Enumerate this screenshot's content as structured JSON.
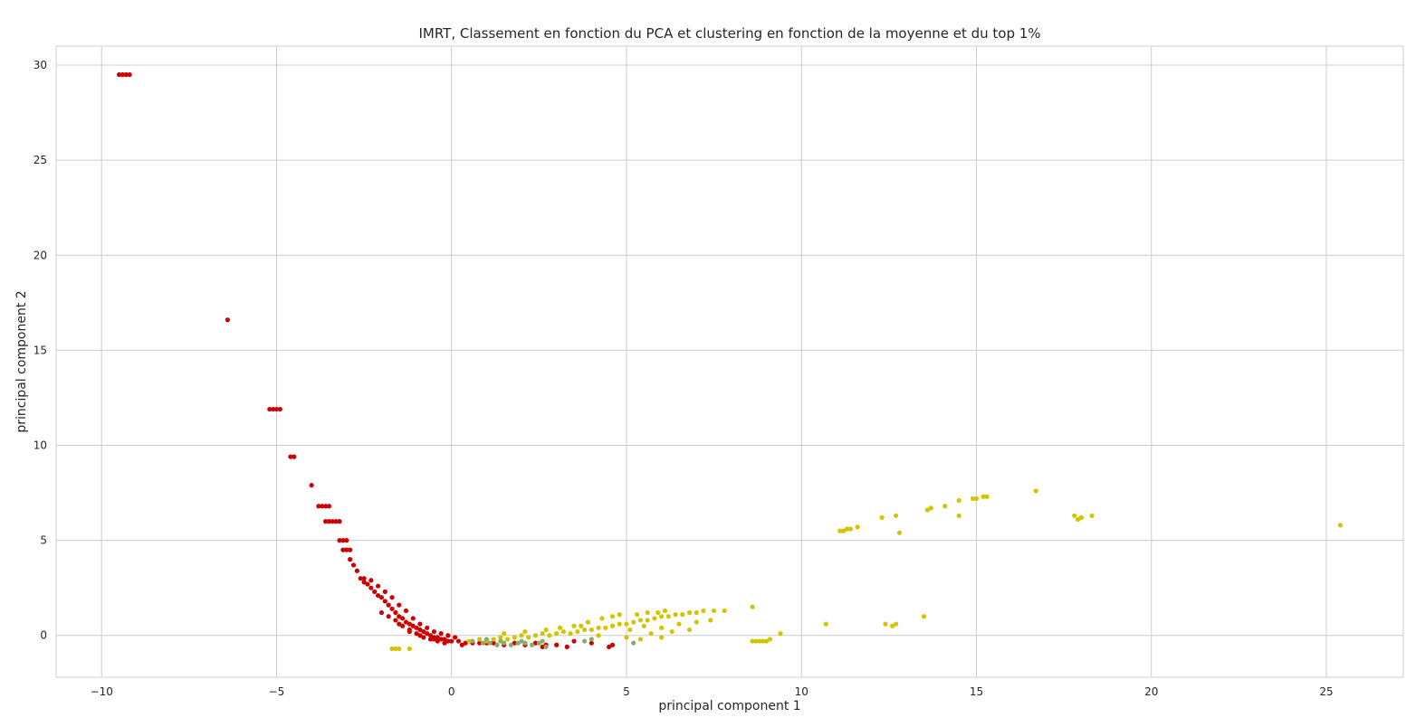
{
  "chart_data": {
    "type": "scatter",
    "title": "IMRT, Classement en fonction du PCA et clustering en fonction de la moyenne et du top 1%",
    "xlabel": "principal component 1",
    "ylabel": "principal component 2",
    "xlim": [
      -11.3,
      27.2
    ],
    "ylim": [
      -2.2,
      31.0
    ],
    "xticks": [
      -10,
      -5,
      0,
      5,
      10,
      15,
      20,
      25
    ],
    "yticks": [
      0,
      5,
      10,
      15,
      20,
      25,
      30
    ],
    "xtick_labels": [
      "−10",
      "−5",
      "0",
      "5",
      "10",
      "15",
      "20",
      "25"
    ],
    "ytick_labels": [
      "0",
      "5",
      "10",
      "15",
      "20",
      "25",
      "30"
    ],
    "grid": true,
    "series": [
      {
        "color": "#cc0000",
        "points": [
          [
            -9.5,
            29.5
          ],
          [
            -9.4,
            29.5
          ],
          [
            -9.3,
            29.5
          ],
          [
            -9.2,
            29.5
          ],
          [
            -6.4,
            16.6
          ],
          [
            -5.2,
            11.9
          ],
          [
            -5.1,
            11.9
          ],
          [
            -5.0,
            11.9
          ],
          [
            -4.9,
            11.9
          ],
          [
            -4.6,
            9.4
          ],
          [
            -4.5,
            9.4
          ],
          [
            -4.0,
            7.9
          ],
          [
            -3.8,
            6.8
          ],
          [
            -3.7,
            6.8
          ],
          [
            -3.6,
            6.8
          ],
          [
            -3.5,
            6.8
          ],
          [
            -3.6,
            6.0
          ],
          [
            -3.5,
            6.0
          ],
          [
            -3.4,
            6.0
          ],
          [
            -3.3,
            6.0
          ],
          [
            -3.2,
            6.0
          ],
          [
            -3.2,
            5.0
          ],
          [
            -3.1,
            5.0
          ],
          [
            -3.0,
            5.0
          ],
          [
            -3.1,
            4.5
          ],
          [
            -3.0,
            4.5
          ],
          [
            -2.9,
            4.5
          ],
          [
            -2.9,
            4.0
          ],
          [
            -2.8,
            3.7
          ],
          [
            -2.7,
            3.4
          ],
          [
            -2.6,
            3.0
          ],
          [
            -2.5,
            2.8
          ],
          [
            -2.4,
            2.7
          ],
          [
            -2.3,
            2.5
          ],
          [
            -2.2,
            2.3
          ],
          [
            -2.1,
            2.1
          ],
          [
            -2.0,
            2.0
          ],
          [
            -1.9,
            1.8
          ],
          [
            -1.8,
            1.6
          ],
          [
            -1.7,
            1.4
          ],
          [
            -1.6,
            1.2
          ],
          [
            -1.5,
            1.0
          ],
          [
            -1.4,
            0.9
          ],
          [
            -1.3,
            0.7
          ],
          [
            -1.2,
            0.6
          ],
          [
            -1.1,
            0.5
          ],
          [
            -1.0,
            0.4
          ],
          [
            -0.9,
            0.3
          ],
          [
            -0.8,
            0.2
          ],
          [
            -0.7,
            0.1
          ],
          [
            -0.6,
            0.0
          ],
          [
            -0.5,
            -0.1
          ],
          [
            -0.4,
            -0.1
          ],
          [
            -0.3,
            -0.2
          ],
          [
            -0.2,
            -0.2
          ],
          [
            -0.1,
            -0.3
          ],
          [
            0.0,
            -0.3
          ],
          [
            0.2,
            -0.3
          ],
          [
            0.4,
            -0.4
          ],
          [
            0.6,
            -0.4
          ],
          [
            0.8,
            -0.4
          ],
          [
            1.0,
            -0.4
          ],
          [
            1.2,
            -0.4
          ],
          [
            1.5,
            -0.5
          ],
          [
            1.8,
            -0.4
          ],
          [
            2.1,
            -0.5
          ],
          [
            2.4,
            -0.4
          ],
          [
            2.7,
            -0.5
          ],
          [
            3.0,
            -0.5
          ],
          [
            3.3,
            -0.6
          ],
          [
            -2.5,
            3.0
          ],
          [
            -2.3,
            2.9
          ],
          [
            -2.1,
            2.6
          ],
          [
            -1.9,
            2.3
          ],
          [
            -1.7,
            2.0
          ],
          [
            -1.5,
            1.6
          ],
          [
            -1.3,
            1.3
          ],
          [
            -1.1,
            0.9
          ],
          [
            -0.9,
            0.6
          ],
          [
            -0.7,
            0.4
          ],
          [
            -0.5,
            0.2
          ],
          [
            -0.3,
            0.1
          ],
          [
            -0.1,
            0.0
          ],
          [
            0.1,
            -0.1
          ],
          [
            -2.0,
            1.2
          ],
          [
            -1.8,
            1.0
          ],
          [
            -1.6,
            0.8
          ],
          [
            -1.4,
            0.5
          ],
          [
            -1.2,
            0.3
          ],
          [
            -1.0,
            0.1
          ],
          [
            -0.8,
            -0.1
          ],
          [
            -0.6,
            -0.2
          ],
          [
            -0.4,
            -0.3
          ],
          [
            -0.2,
            -0.4
          ],
          [
            -1.5,
            0.6
          ],
          [
            -1.2,
            0.2
          ],
          [
            -0.9,
            0.0
          ],
          [
            -0.5,
            -0.2
          ],
          [
            0.3,
            -0.5
          ],
          [
            2.6,
            -0.6
          ],
          [
            3.5,
            -0.3
          ],
          [
            4.0,
            -0.4
          ],
          [
            4.6,
            -0.5
          ],
          [
            4.5,
            -0.6
          ]
        ]
      },
      {
        "color": "#d4c400",
        "points": [
          [
            -1.7,
            -0.7
          ],
          [
            -1.6,
            -0.7
          ],
          [
            -1.5,
            -0.7
          ],
          [
            -1.2,
            -0.7
          ],
          [
            0.5,
            -0.3
          ],
          [
            0.8,
            -0.2
          ],
          [
            1.0,
            -0.3
          ],
          [
            1.2,
            -0.2
          ],
          [
            1.4,
            -0.1
          ],
          [
            1.6,
            -0.2
          ],
          [
            1.8,
            -0.1
          ],
          [
            2.0,
            0.0
          ],
          [
            2.2,
            -0.1
          ],
          [
            2.4,
            0.0
          ],
          [
            2.6,
            0.1
          ],
          [
            2.8,
            0.0
          ],
          [
            3.0,
            0.1
          ],
          [
            3.2,
            0.2
          ],
          [
            3.4,
            0.1
          ],
          [
            3.6,
            0.2
          ],
          [
            3.8,
            0.3
          ],
          [
            4.0,
            0.3
          ],
          [
            4.2,
            0.4
          ],
          [
            4.4,
            0.4
          ],
          [
            4.6,
            0.5
          ],
          [
            4.8,
            0.6
          ],
          [
            5.0,
            0.6
          ],
          [
            5.2,
            0.7
          ],
          [
            5.4,
            0.8
          ],
          [
            5.6,
            0.8
          ],
          [
            5.8,
            0.9
          ],
          [
            6.0,
            1.0
          ],
          [
            6.2,
            1.0
          ],
          [
            6.4,
            1.1
          ],
          [
            6.6,
            1.1
          ],
          [
            6.8,
            1.2
          ],
          [
            7.0,
            1.2
          ],
          [
            7.2,
            1.3
          ],
          [
            7.5,
            1.3
          ],
          [
            7.8,
            1.3
          ],
          [
            4.6,
            1.0
          ],
          [
            4.8,
            1.1
          ],
          [
            5.3,
            1.1
          ],
          [
            5.6,
            1.2
          ],
          [
            5.9,
            1.2
          ],
          [
            6.1,
            1.3
          ],
          [
            3.9,
            0.7
          ],
          [
            4.3,
            0.9
          ],
          [
            3.5,
            0.5
          ],
          [
            1.5,
            0.1
          ],
          [
            2.1,
            0.2
          ],
          [
            2.7,
            0.3
          ],
          [
            3.1,
            0.4
          ],
          [
            3.7,
            0.5
          ],
          [
            5.5,
            0.5
          ],
          [
            6.0,
            0.4
          ],
          [
            6.5,
            0.6
          ],
          [
            7.0,
            0.7
          ],
          [
            7.4,
            0.8
          ],
          [
            5.1,
            0.3
          ],
          [
            5.7,
            0.1
          ],
          [
            6.3,
            0.2
          ],
          [
            6.8,
            0.3
          ],
          [
            5.0,
            -0.1
          ],
          [
            4.2,
            0.0
          ],
          [
            5.4,
            -0.2
          ],
          [
            6.0,
            -0.1
          ],
          [
            8.6,
            1.5
          ],
          [
            8.6,
            -0.3
          ],
          [
            8.7,
            -0.3
          ],
          [
            8.8,
            -0.3
          ],
          [
            8.9,
            -0.3
          ],
          [
            9.0,
            -0.3
          ],
          [
            9.1,
            -0.2
          ],
          [
            9.4,
            0.1
          ],
          [
            10.7,
            0.6
          ],
          [
            11.1,
            5.5
          ],
          [
            11.2,
            5.5
          ],
          [
            11.3,
            5.6
          ],
          [
            11.4,
            5.6
          ],
          [
            11.6,
            5.7
          ],
          [
            12.3,
            6.2
          ],
          [
            12.4,
            0.6
          ],
          [
            12.6,
            0.5
          ],
          [
            12.7,
            0.6
          ],
          [
            12.7,
            6.3
          ],
          [
            12.8,
            5.4
          ],
          [
            13.5,
            1.0
          ],
          [
            13.6,
            6.6
          ],
          [
            13.7,
            6.7
          ],
          [
            14.1,
            6.8
          ],
          [
            14.5,
            6.3
          ],
          [
            14.5,
            7.1
          ],
          [
            14.9,
            7.2
          ],
          [
            15.0,
            7.2
          ],
          [
            15.2,
            7.3
          ],
          [
            15.3,
            7.3
          ],
          [
            16.7,
            7.6
          ],
          [
            17.8,
            6.3
          ],
          [
            17.9,
            6.1
          ],
          [
            18.0,
            6.2
          ],
          [
            18.3,
            6.3
          ],
          [
            25.4,
            5.8
          ]
        ]
      },
      {
        "color": "#8aab6a",
        "points": [
          [
            0.6,
            -0.3
          ],
          [
            0.9,
            -0.4
          ],
          [
            1.1,
            -0.4
          ],
          [
            1.3,
            -0.5
          ],
          [
            1.5,
            -0.4
          ],
          [
            1.7,
            -0.5
          ],
          [
            1.9,
            -0.4
          ],
          [
            2.1,
            -0.4
          ],
          [
            2.3,
            -0.5
          ],
          [
            2.5,
            -0.4
          ],
          [
            2.7,
            -0.6
          ],
          [
            1.0,
            -0.2
          ],
          [
            1.4,
            -0.3
          ],
          [
            2.0,
            -0.3
          ],
          [
            2.6,
            -0.3
          ],
          [
            3.8,
            -0.3
          ],
          [
            4.0,
            -0.2
          ],
          [
            5.2,
            -0.4
          ]
        ]
      }
    ]
  }
}
